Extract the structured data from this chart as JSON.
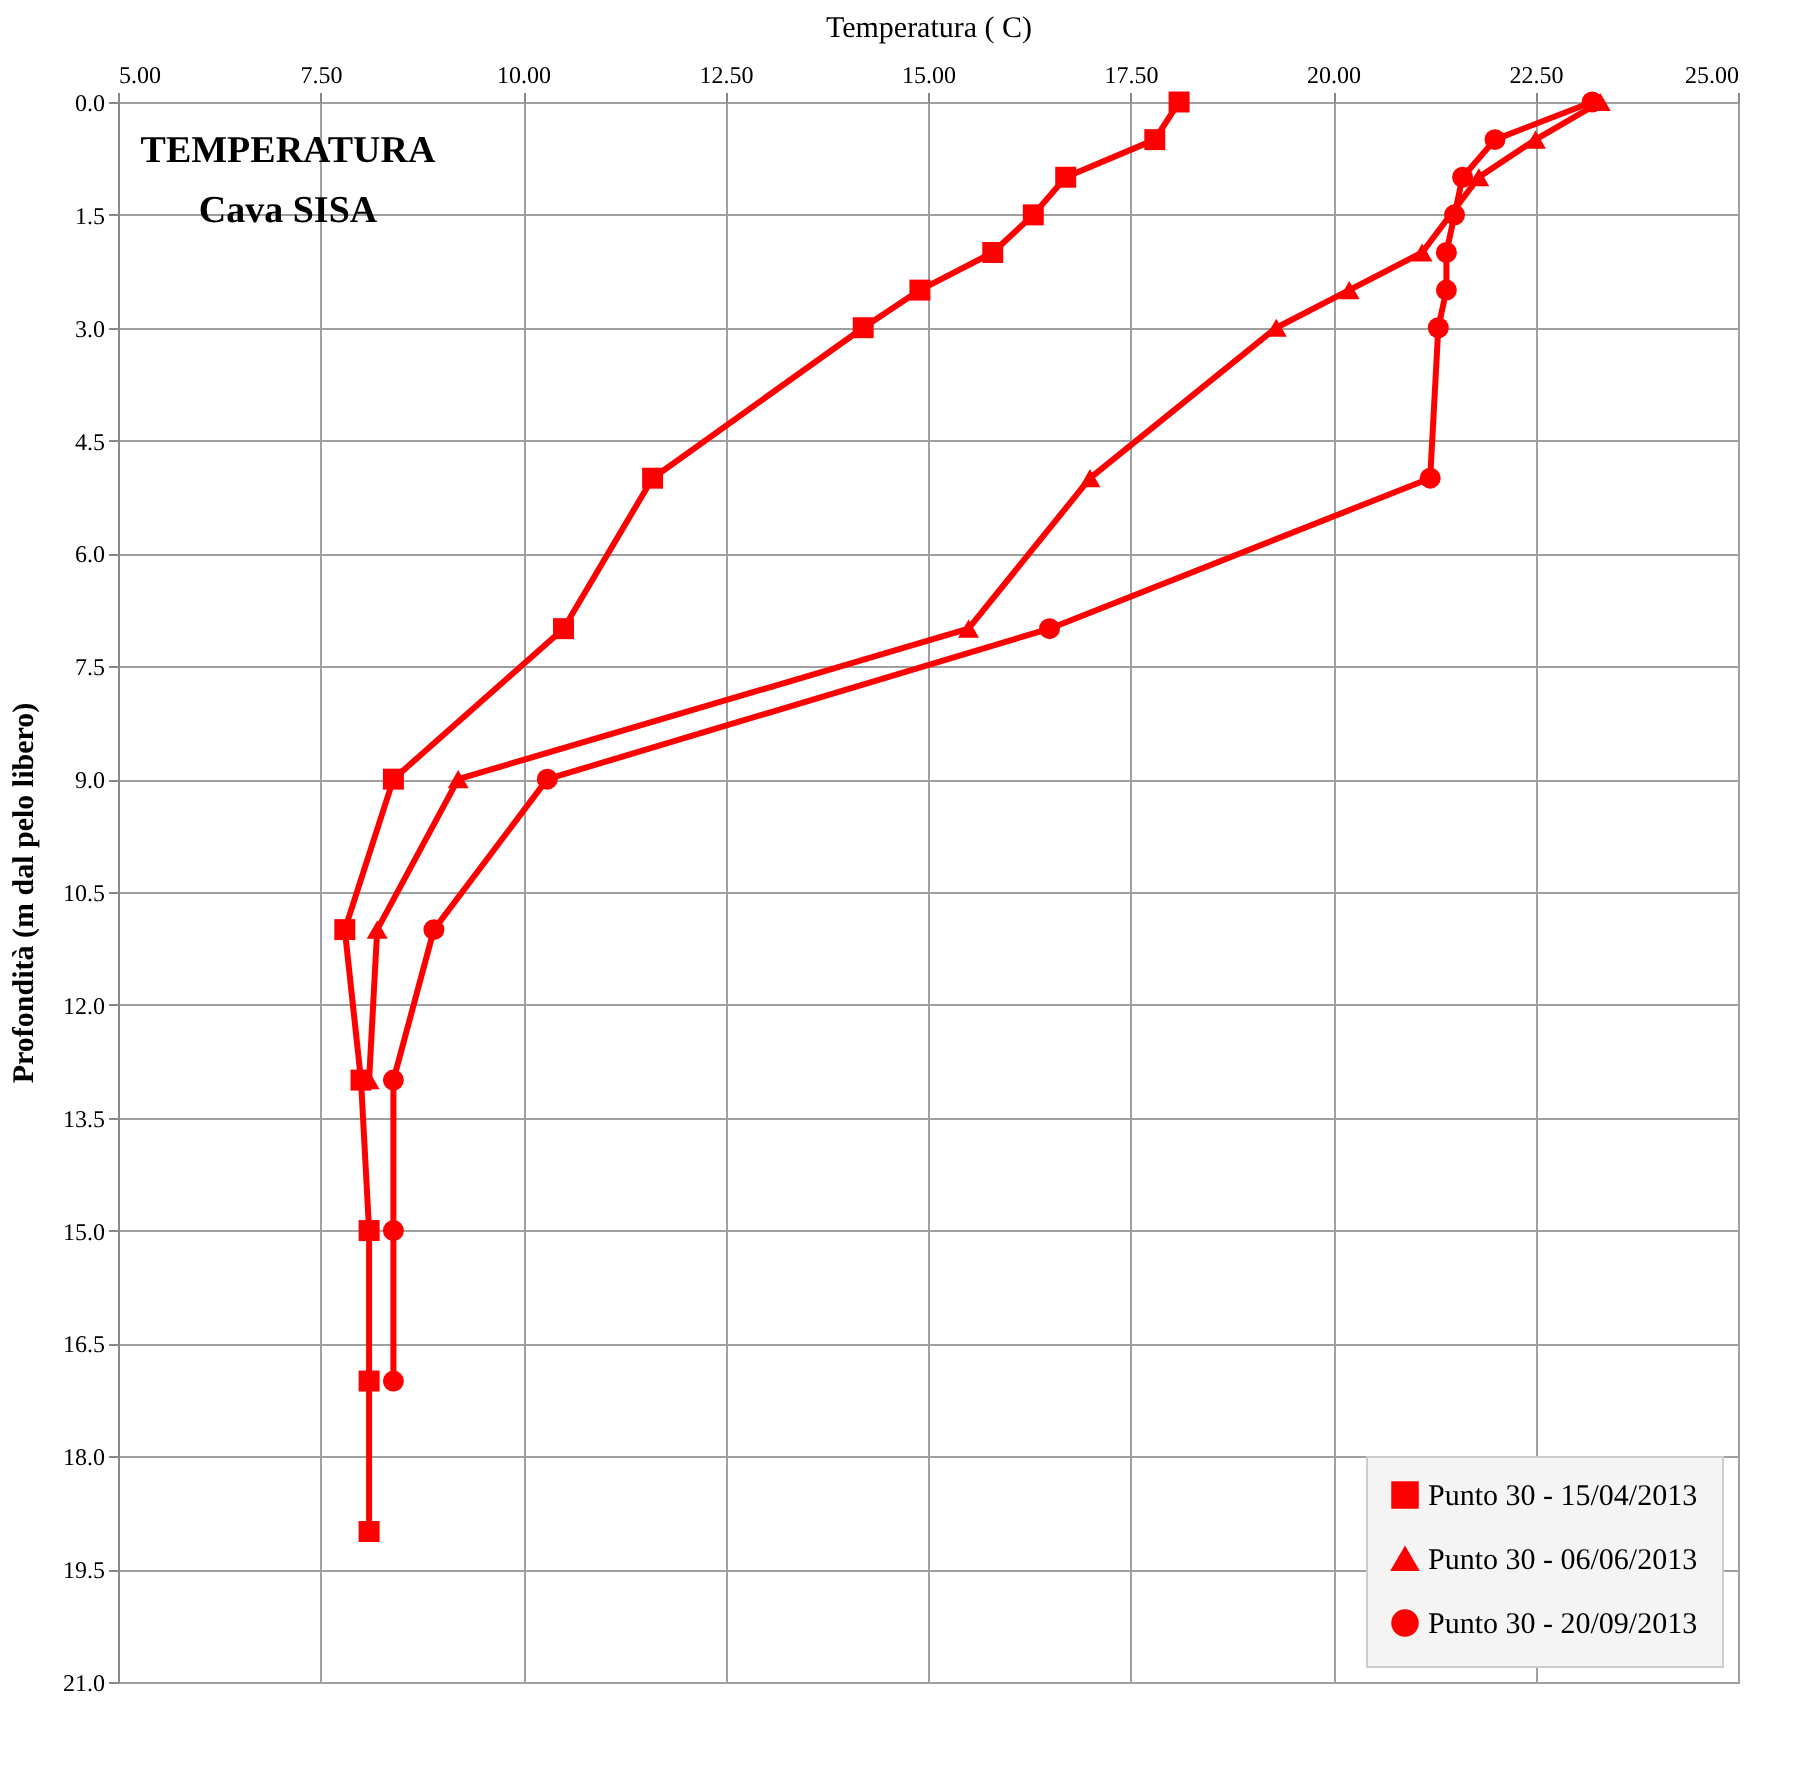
{
  "chart_data": {
    "type": "line",
    "xlabel": "Temperatura ( C)",
    "ylabel": "Profondità (m dal pelo libero)",
    "annotations": [
      "TEMPERATURA",
      "Cava SISA"
    ],
    "xlim": [
      5,
      25
    ],
    "xticks": [
      {
        "value": 5,
        "label": "5.00"
      },
      {
        "value": 7.5,
        "label": "7.50"
      },
      {
        "value": 10,
        "label": "10.00"
      },
      {
        "value": 12.5,
        "label": "12.50"
      },
      {
        "value": 15,
        "label": "15.00"
      },
      {
        "value": 17.5,
        "label": "17.50"
      },
      {
        "value": 20,
        "label": "20.00"
      },
      {
        "value": 22.5,
        "label": "22.50"
      },
      {
        "value": 25,
        "label": "25.00"
      }
    ],
    "ylim": [
      21,
      0
    ],
    "yticks": [
      {
        "value": 0,
        "label": "0.0"
      },
      {
        "value": 1.5,
        "label": "1.5"
      },
      {
        "value": 3,
        "label": "3.0"
      },
      {
        "value": 4.5,
        "label": "4.5"
      },
      {
        "value": 6,
        "label": "6.0"
      },
      {
        "value": 7.5,
        "label": "7.5"
      },
      {
        "value": 9,
        "label": "9.0"
      },
      {
        "value": 10.5,
        "label": "10.5"
      },
      {
        "value": 12,
        "label": "12.0"
      },
      {
        "value": 13.5,
        "label": "13.5"
      },
      {
        "value": 15,
        "label": "15.0"
      },
      {
        "value": 16.5,
        "label": "16.5"
      },
      {
        "value": 18,
        "label": "18.0"
      },
      {
        "value": 19.5,
        "label": "19.5"
      },
      {
        "value": 21,
        "label": "21.0"
      }
    ],
    "grid": true,
    "legend": "bottom right",
    "line_style": "solid",
    "series": [
      {
        "name": "Punto 30 - 15/04/2013",
        "color": "#ff0000",
        "marker": "square",
        "x": [
          18.1,
          17.8,
          16.7,
          16.3,
          15.8,
          14.9,
          14.2,
          11.6,
          10.5,
          8.4,
          7.8,
          8.0,
          8.1,
          8.1,
          8.1
        ],
        "values": [
          0,
          0.5,
          1,
          1.5,
          2,
          2.5,
          3,
          5,
          7,
          9,
          11,
          13,
          15,
          17,
          19
        ]
      },
      {
        "name": "Punto 30 - 06/06/2013",
        "color": "#ff0000",
        "marker": "triangle",
        "x": [
          23.3,
          22.5,
          21.8,
          21.1,
          20.2,
          19.3,
          17.0,
          15.5,
          9.2,
          8.2,
          8.1
        ],
        "values": [
          0,
          0.5,
          1,
          2,
          2.5,
          3,
          5,
          7,
          9,
          11,
          13
        ]
      },
      {
        "name": "Punto 30 - 20/09/2013",
        "color": "#ff0000",
        "marker": "circle",
        "x": [
          23.2,
          22.0,
          21.6,
          21.5,
          21.4,
          21.4,
          21.3,
          21.2,
          16.5,
          10.3,
          8.9,
          8.4,
          8.4,
          8.4
        ],
        "values": [
          0,
          0.5,
          1,
          1.5,
          2,
          2.5,
          3,
          5,
          7,
          9,
          11,
          13,
          15,
          17
        ]
      }
    ]
  }
}
